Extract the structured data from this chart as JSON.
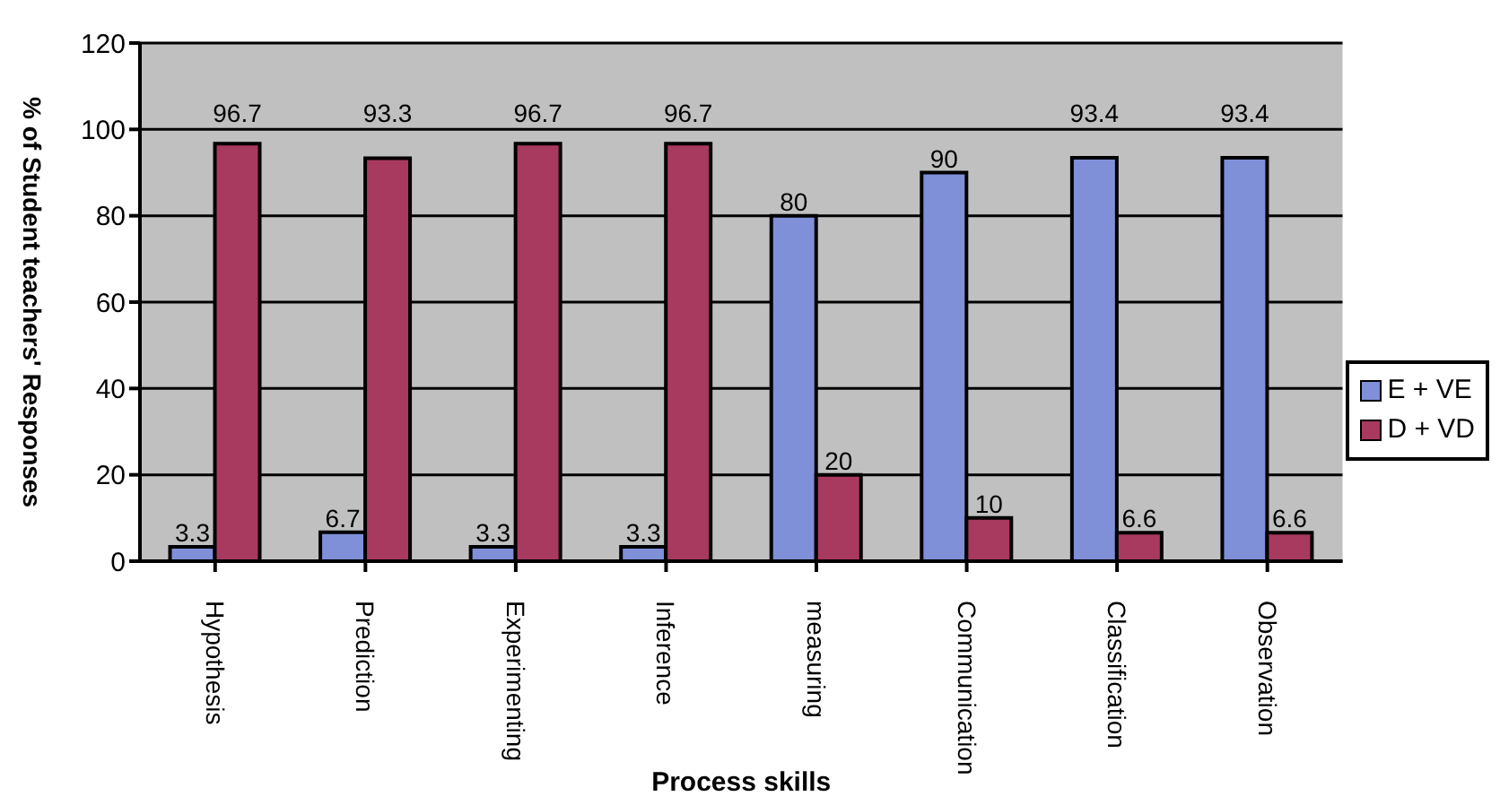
{
  "chart_data": {
    "type": "bar",
    "xlabel": "Process skills",
    "ylabel": "% of Student teachers' Responses",
    "categories": [
      "Hypothesis",
      "Prediction",
      "Experimenting",
      "Inference",
      "measuring",
      "Communication",
      "Classification",
      "Observation"
    ],
    "series": [
      {
        "name": "E + VE",
        "color": "#7f8fd8",
        "values": [
          3.3,
          6.7,
          3.3,
          3.3,
          80,
          90,
          93.4,
          93.4
        ]
      },
      {
        "name": "D + VD",
        "color": "#a8395f",
        "values": [
          96.7,
          93.3,
          96.7,
          96.7,
          20,
          10,
          6.6,
          6.6
        ]
      }
    ],
    "ylim": [
      0,
      120
    ],
    "yticks": [
      0,
      20,
      40,
      60,
      80,
      100,
      120
    ],
    "grid": "y",
    "legend": "right",
    "data_labels": true
  }
}
